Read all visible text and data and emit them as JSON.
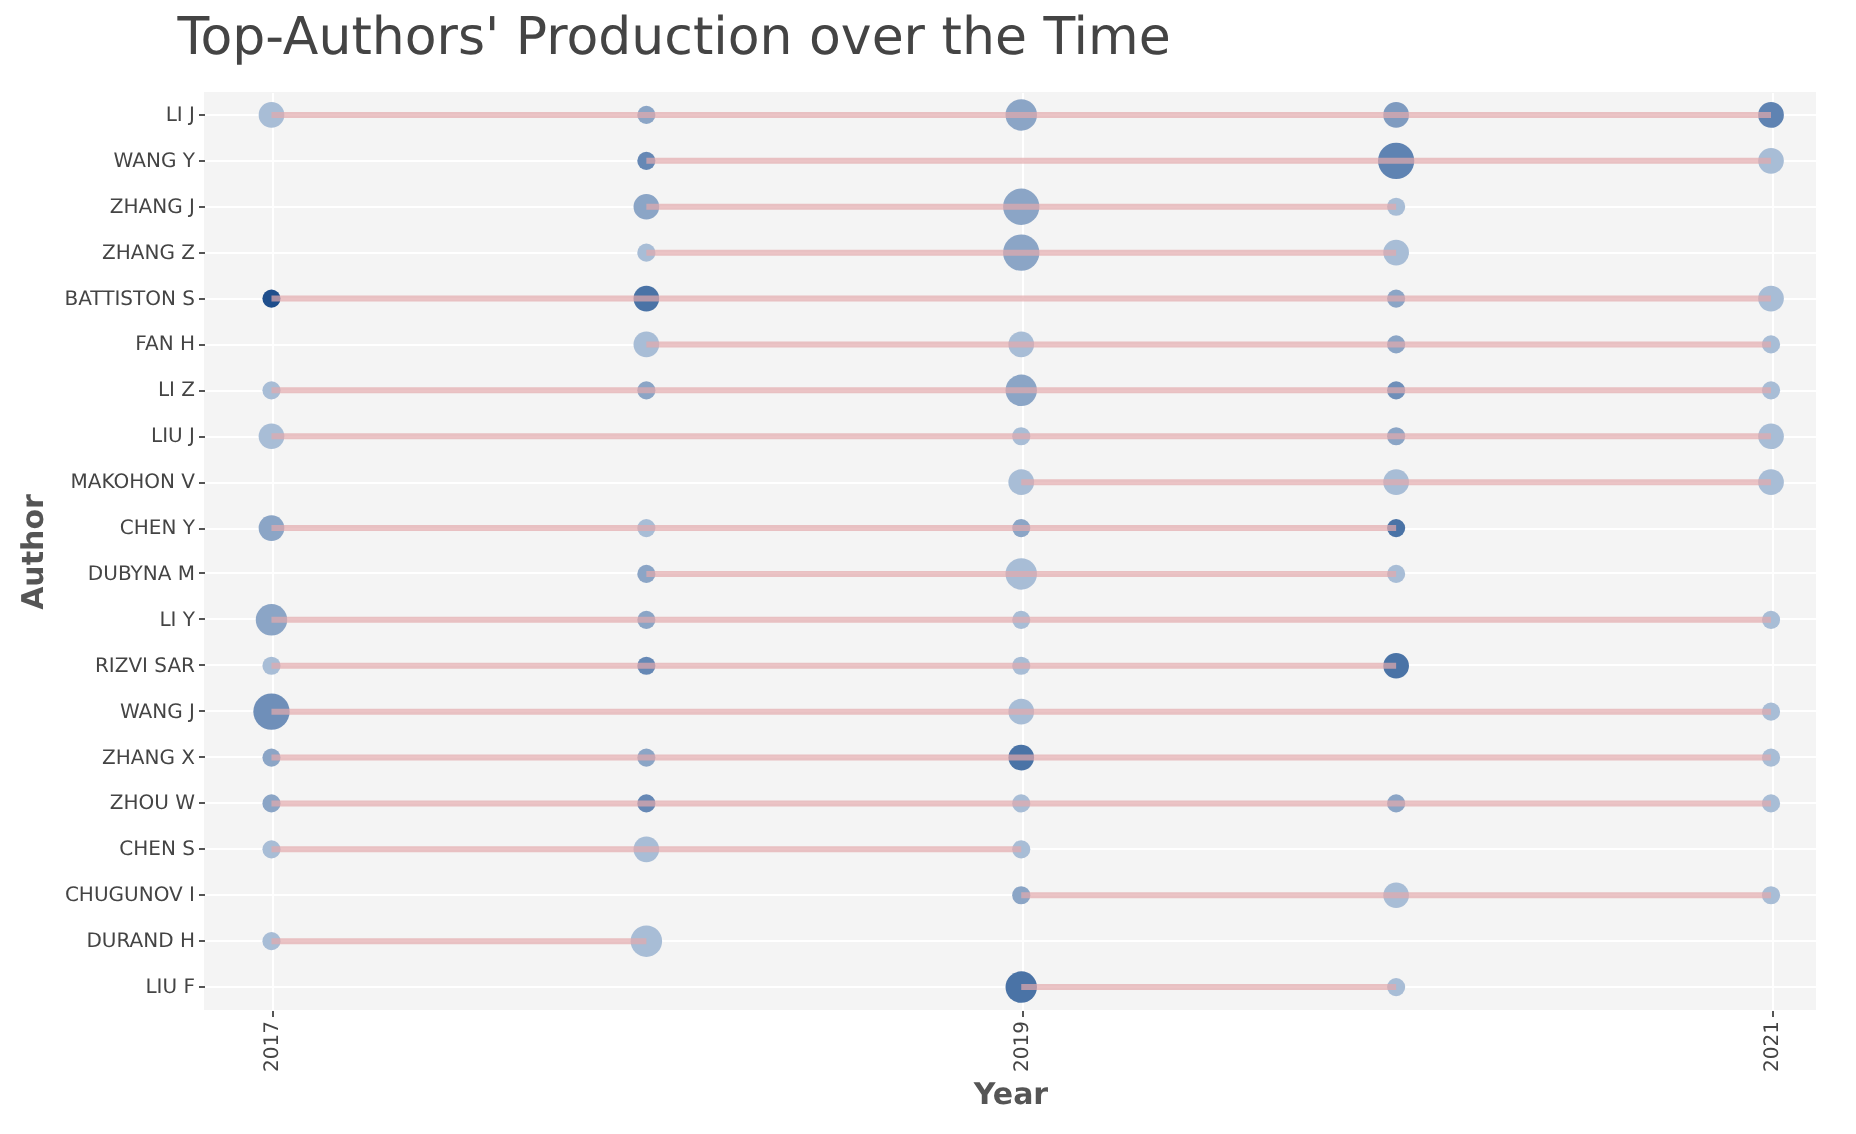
{
  "chart_data": {
    "type": "bubble",
    "orientation": "horizontal",
    "title": "Top-Authors' Production over the Time",
    "xlabel": "Year",
    "ylabel": "Author",
    "categories": [
      "LI J",
      "WANG Y",
      "ZHANG J",
      "ZHANG Z",
      "BATTISTON S",
      "FAN H",
      "LI Z",
      "LIU J",
      "MAKOHON V",
      "CHEN Y",
      "DUBYNA M",
      "LI Y",
      "RIZVI SAR",
      "WANG J",
      "ZHANG X",
      "ZHOU W",
      "CHEN S",
      "CHUGUNOV I",
      "DURAND H",
      "LIU F"
    ],
    "xlim": [
      2016.82,
      2021.12
    ],
    "xticks": [
      2017,
      2019,
      2021
    ],
    "grid": true,
    "series": [
      {
        "type": "bar",
        "color": "#e3a9ad",
        "base": [
          2017,
          2018,
          2018,
          2018,
          2017,
          2018,
          2017,
          2017,
          2019,
          2017,
          2018,
          2017,
          2017,
          2017,
          2017,
          2017,
          2017,
          2019,
          2017,
          2019
        ],
        "values": [
          4,
          3,
          2,
          2,
          4,
          3,
          4,
          4,
          2,
          3,
          2,
          4,
          3,
          4,
          4,
          4,
          2,
          2,
          1,
          1
        ]
      },
      {
        "values": [
          2017,
          null,
          null,
          null,
          2017,
          null,
          2017,
          2017,
          null,
          2017,
          null,
          2017,
          2017,
          2017,
          2017,
          2017,
          2017,
          null,
          2017,
          null
        ],
        "sizes": [
          0.5,
          null,
          null,
          null,
          0.25,
          null,
          0.25,
          0.5,
          null,
          0.5,
          null,
          0.75,
          0.25,
          1,
          0.25,
          0.25,
          0.25,
          null,
          0.25,
          null
        ],
        "colors": [
          "#a8bdd6",
          null,
          null,
          null,
          "#1f4e8c",
          null,
          "#a8bdd6",
          "#a8bdd6",
          null,
          "#8ba5c6",
          null,
          "#8ba5c6",
          "#a8bdd6",
          "#6f8fb9",
          "#8ba5c6",
          "#8ba5c6",
          "#a8bdd6",
          null,
          "#a8bdd6",
          null
        ]
      },
      {
        "values": [
          2018,
          2018,
          2018,
          2018,
          2018,
          2018,
          2018,
          null,
          null,
          2018,
          2018,
          2018,
          2018,
          null,
          2018,
          2018,
          2018,
          null,
          2018,
          null
        ],
        "sizes": [
          0.25,
          0.25,
          0.5,
          0.25,
          0.5,
          0.5,
          0.25,
          null,
          null,
          0.25,
          0.25,
          0.25,
          0.25,
          null,
          0.25,
          0.25,
          0.5,
          null,
          0.75,
          null
        ],
        "colors": [
          "#8ba5c6",
          "#6688b5",
          "#8ba5c6",
          "#a8bdd6",
          "#4a73a6",
          "#a8bdd6",
          "#8ba5c6",
          null,
          null,
          "#a8bdd6",
          "#8ba5c6",
          "#8ba5c6",
          "#6688b5",
          null,
          "#8ba5c6",
          "#6688b5",
          "#a8bdd6",
          null,
          "#a8bdd6",
          null
        ]
      },
      {
        "values": [
          2019,
          null,
          2019,
          2019,
          null,
          2019,
          2019,
          2019,
          2019,
          2019,
          2019,
          2019,
          2019,
          2019,
          2019,
          2019,
          2019,
          2019,
          null,
          2019
        ],
        "sizes": [
          0.75,
          null,
          1,
          1,
          null,
          0.5,
          0.75,
          0.25,
          0.5,
          0.25,
          0.75,
          0.25,
          0.25,
          0.5,
          0.5,
          0.25,
          0.25,
          0.25,
          null,
          0.75
        ],
        "colors": [
          "#8ba5c6",
          null,
          "#8ba5c6",
          "#8ba5c6",
          null,
          "#a8bdd6",
          "#8ba5c6",
          "#a8bdd6",
          "#a8bdd6",
          "#8ba5c6",
          "#a8bdd6",
          "#a8bdd6",
          "#a8bdd6",
          "#a8bdd6",
          "#4a73a6",
          "#a8bdd6",
          "#a8bdd6",
          "#8ba5c6",
          null,
          "#4a73a6"
        ]
      },
      {
        "values": [
          2020,
          2020,
          2020,
          2020,
          2020,
          2020,
          2020,
          2020,
          2020,
          2020,
          2020,
          null,
          2020,
          null,
          null,
          2020,
          null,
          2020,
          null,
          2020
        ],
        "sizes": [
          0.5,
          1,
          0.25,
          0.5,
          0.25,
          0.25,
          0.25,
          0.25,
          0.5,
          0.25,
          0.25,
          null,
          0.5,
          null,
          null,
          0.25,
          null,
          0.5,
          null,
          0.25
        ],
        "colors": [
          "#7f9bc0",
          "#5f83b2",
          "#a8bdd6",
          "#a8bdd6",
          "#8ba5c6",
          "#8ba5c6",
          "#6f8fb9",
          "#8ba5c6",
          "#a8bdd6",
          "#4a73a6",
          "#a8bdd6",
          null,
          "#4a73a6",
          null,
          null,
          "#8ba5c6",
          null,
          "#a8bdd6",
          null,
          "#a8bdd6"
        ]
      },
      {
        "values": [
          2021,
          2021,
          null,
          null,
          2021,
          2021,
          2021,
          2021,
          2021,
          null,
          null,
          2021,
          null,
          2021,
          2021,
          2021,
          null,
          2021,
          null,
          null
        ],
        "sizes": [
          0.5,
          0.5,
          null,
          null,
          0.5,
          0.25,
          0.25,
          0.5,
          0.5,
          null,
          null,
          0.25,
          null,
          0.25,
          0.25,
          0.25,
          null,
          0.25,
          null,
          null
        ],
        "colors": [
          "#5f83b2",
          "#a8bdd6",
          null,
          null,
          "#a8bdd6",
          "#a8bdd6",
          "#a8bdd6",
          "#a8bdd6",
          "#a8bdd6",
          null,
          null,
          "#a8bdd6",
          null,
          "#a8bdd6",
          "#a8bdd6",
          "#a8bdd6",
          null,
          "#a8bdd6",
          null,
          null
        ]
      }
    ]
  }
}
